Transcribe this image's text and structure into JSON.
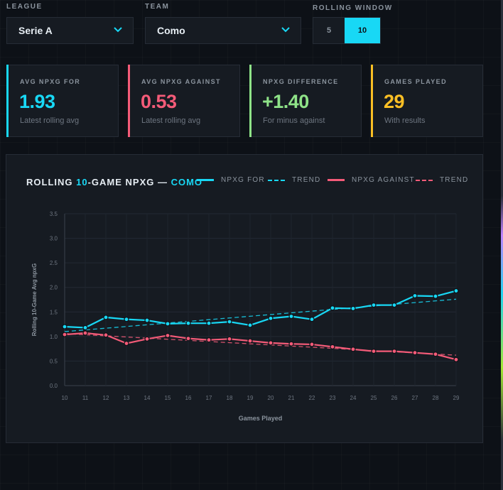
{
  "filters": {
    "league": {
      "label": "LEAGUE",
      "value": "Serie A"
    },
    "team": {
      "label": "TEAM",
      "value": "Como"
    },
    "rolling_window": {
      "label": "ROLLING WINDOW",
      "options": [
        "5",
        "10"
      ],
      "selected": "10"
    }
  },
  "cards": [
    {
      "label": "AVG NPXG FOR",
      "value": "1.93",
      "sub": "Latest rolling avg",
      "color": "#18d8f5"
    },
    {
      "label": "AVG NPXG AGAINST",
      "value": "0.53",
      "sub": "Latest rolling avg",
      "color": "#f45b78"
    },
    {
      "label": "NPXG DIFFERENCE",
      "value": "+1.40",
      "sub": "For minus against",
      "color": "#8fe388"
    },
    {
      "label": "GAMES PLAYED",
      "value": "29",
      "sub": "With results",
      "color": "#fbbf24"
    }
  ],
  "chart": {
    "title_prefix": "ROLLING ",
    "title_window": "10",
    "title_mid": "-GAME NPXG — ",
    "title_team": "COMO",
    "legend": {
      "for": "NPXG FOR",
      "for_trend": "TREND",
      "against": "NPXG AGAINST",
      "against_trend": "TREND"
    }
  },
  "chart_data": {
    "type": "line",
    "title": "ROLLING 10-GAME NPXG — COMO",
    "xlabel": "Games Played",
    "ylabel": "Rolling 10-Game Avg npxG",
    "x": [
      10,
      11,
      12,
      13,
      14,
      15,
      16,
      17,
      18,
      19,
      20,
      21,
      22,
      23,
      24,
      25,
      26,
      27,
      28,
      29
    ],
    "yticks": [
      "0.0",
      "0.5",
      "1.0",
      "1.5",
      "2.0",
      "2.5",
      "3.0",
      "3.5"
    ],
    "ylim": [
      0,
      3.5
    ],
    "grid": true,
    "series": [
      {
        "name": "NPXG FOR",
        "color": "#18d8f5",
        "values": [
          1.2,
          1.18,
          1.39,
          1.35,
          1.33,
          1.26,
          1.27,
          1.27,
          1.3,
          1.23,
          1.37,
          1.41,
          1.35,
          1.58,
          1.57,
          1.64,
          1.64,
          1.83,
          1.82,
          1.93
        ]
      },
      {
        "name": "NPXG AGAINST",
        "color": "#f45b78",
        "values": [
          1.04,
          1.07,
          1.03,
          0.86,
          0.95,
          1.02,
          0.96,
          0.93,
          0.95,
          0.91,
          0.87,
          0.85,
          0.84,
          0.79,
          0.74,
          0.7,
          0.7,
          0.67,
          0.64,
          0.53
        ]
      }
    ],
    "trends": [
      {
        "name": "TREND",
        "of": "NPXG FOR",
        "color": "#18d8f5",
        "start": 1.1,
        "end": 1.76
      },
      {
        "name": "TREND",
        "of": "NPXG AGAINST",
        "color": "#f45b78",
        "start": 1.06,
        "end": 0.62
      }
    ]
  }
}
